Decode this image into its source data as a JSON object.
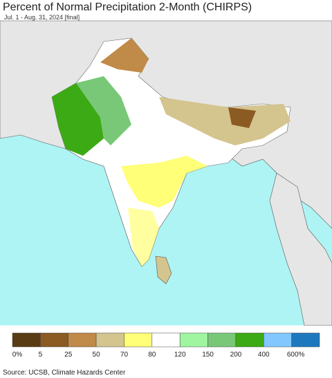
{
  "header": {
    "title": "Percent of Normal Precipitation 2-Month (CHIRPS)",
    "subtitle": "Jul. 1 - Aug. 31, 2024 [final]"
  },
  "legend": {
    "colors": [
      "#5a3c14",
      "#8c5a23",
      "#c08a48",
      "#d4c48e",
      "#ffff78",
      "#ffffff",
      "#a0f5a0",
      "#78c878",
      "#3caa14",
      "#82c8ff",
      "#1e78be"
    ],
    "labels": [
      "0%",
      "5",
      "25",
      "50",
      "70",
      "80",
      "120",
      "150",
      "200",
      "400",
      "600%"
    ]
  },
  "footer": {
    "source": "Source: UCSB, Climate Hazards Center"
  }
}
